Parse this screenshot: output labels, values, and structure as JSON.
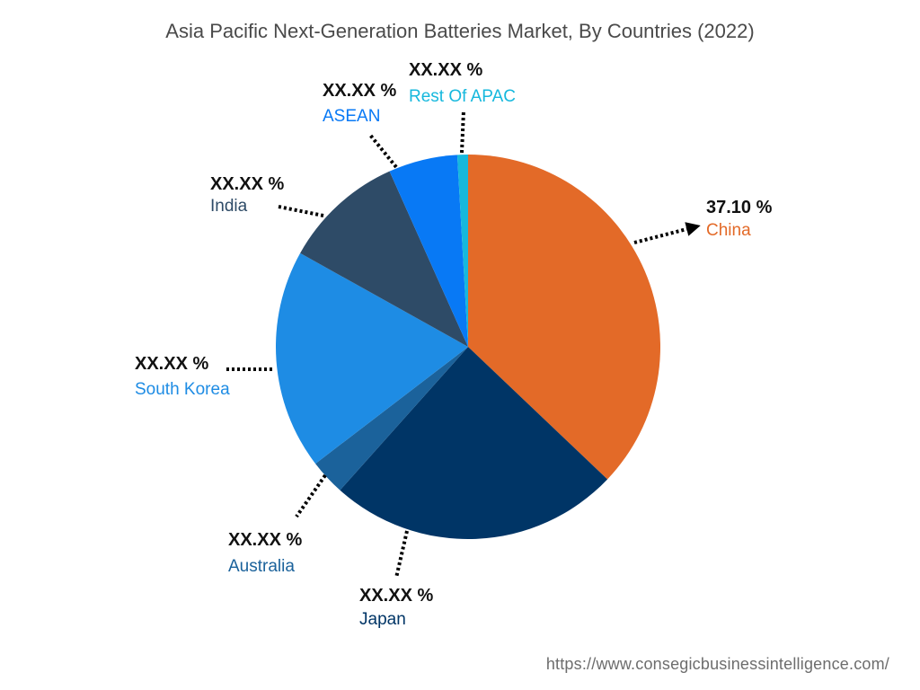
{
  "title": "Asia Pacific Next-Generation Batteries Market, By Countries (2022)",
  "source": "https://www.consegicbusinessintelligence.com/",
  "chart_data": {
    "type": "pie",
    "title": "Asia Pacific Next-Generation Batteries Market, By Countries (2022)",
    "unit": "%",
    "legend": "none",
    "slices": [
      {
        "name": "China",
        "value": 37.1,
        "label": "37.10 %",
        "color": "#e36a28"
      },
      {
        "name": "Japan",
        "value": 24.5,
        "label": "XX.XX %",
        "color": "#003566"
      },
      {
        "name": "Australia",
        "value": 3.0,
        "label": "XX.XX %",
        "color": "#1b629b"
      },
      {
        "name": "South Korea",
        "value": 18.5,
        "label": "XX.XX %",
        "color": "#1e8ce4"
      },
      {
        "name": "India",
        "value": 10.2,
        "label": "XX.XX %",
        "color": "#2e4b67"
      },
      {
        "name": "ASEAN",
        "value": 5.8,
        "label": "XX.XX %",
        "color": "#0879f5"
      },
      {
        "name": "Rest Of APAC",
        "value": 0.9,
        "label": "XX.XX %",
        "color": "#16b8dd"
      }
    ]
  }
}
